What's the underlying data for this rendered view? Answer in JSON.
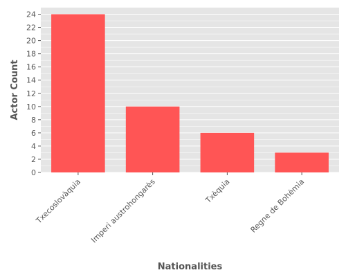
{
  "chart_data": {
    "type": "bar",
    "title": "",
    "xlabel": "Nationalities",
    "ylabel": "Actor Count",
    "categories": [
      "Txecoslovàquia",
      "Imperi austrohongarès",
      "Txèquia",
      "Regne de Bohèmia"
    ],
    "values": [
      24,
      10,
      6,
      3
    ],
    "ylim": [
      0,
      25
    ],
    "yticks": [
      0,
      2,
      4,
      6,
      8,
      10,
      12,
      14,
      16,
      18,
      20,
      22,
      24
    ],
    "grid": true,
    "legend": "none",
    "colors": {
      "bar": "#ff5555",
      "panel": "#e5e5e5",
      "grid": "#ffffff",
      "text": "#555555"
    }
  }
}
